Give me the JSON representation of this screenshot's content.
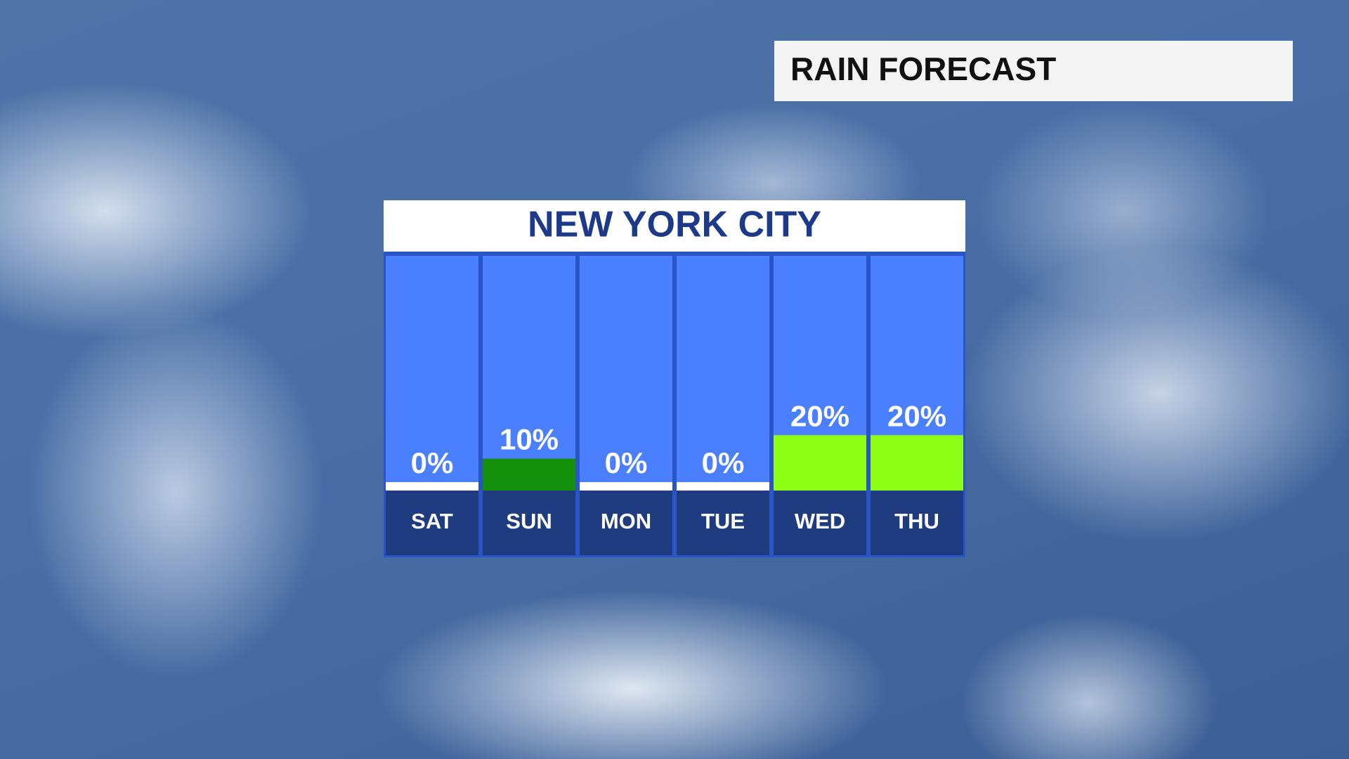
{
  "header": {
    "title": "RAIN FORECAST"
  },
  "chart_data": {
    "type": "bar",
    "title": "NEW YORK CITY",
    "categories": [
      "SAT",
      "SUN",
      "MON",
      "TUE",
      "WED",
      "THU"
    ],
    "values": [
      0,
      10,
      0,
      0,
      20,
      20
    ],
    "value_labels": [
      "0%",
      "10%",
      "0%",
      "0%",
      "20%",
      "20%"
    ],
    "colors": [
      "#ffffff",
      "#15900c",
      "#ffffff",
      "#ffffff",
      "#8cff14",
      "#8cff14"
    ],
    "ylim": [
      0,
      100
    ]
  }
}
